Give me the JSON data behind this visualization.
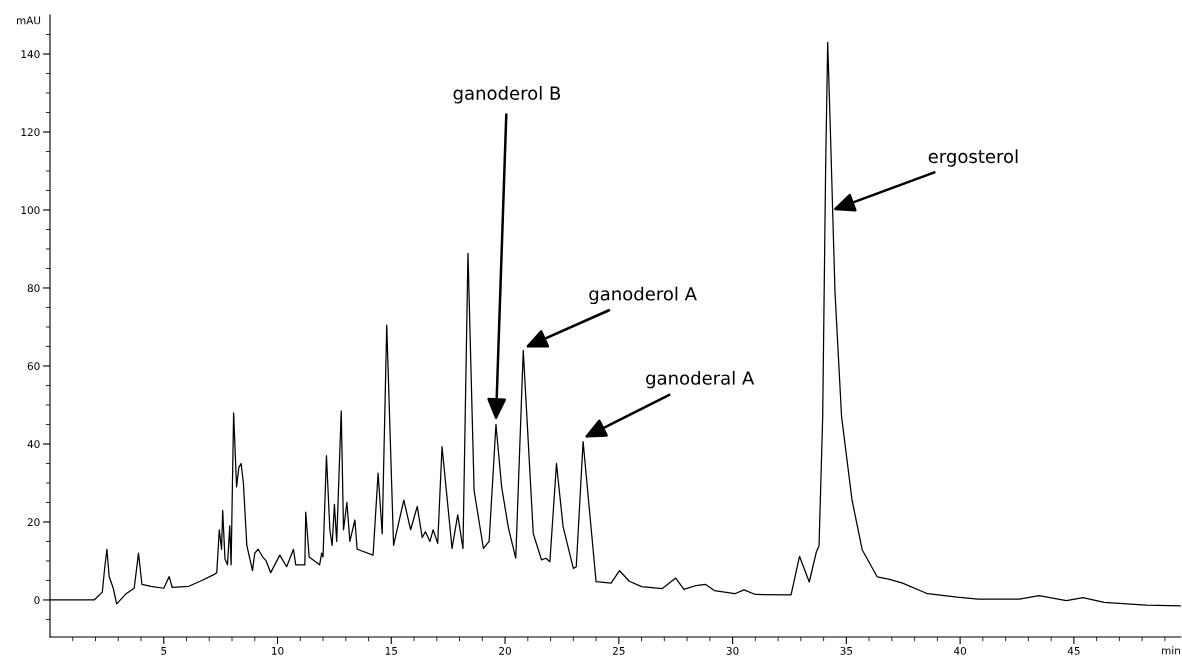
{
  "chart_data": {
    "type": "line",
    "xlabel": "min",
    "ylabel": "mAU",
    "x": [
      0,
      1.94,
      2.3,
      2.4,
      2.5,
      2.6,
      2.78,
      2.93,
      3.33,
      3.7,
      3.89,
      4.04,
      4.44,
      5.0,
      5.24,
      5.37,
      6.1,
      6.67,
      7.2,
      7.33,
      7.44,
      7.54,
      7.59,
      7.69,
      7.8,
      7.9,
      7.96,
      8.07,
      8.2,
      8.3,
      8.4,
      8.5,
      8.65,
      8.9,
      9.0,
      9.15,
      9.35,
      9.5,
      9.7,
      10.1,
      10.4,
      10.7,
      10.8,
      11.2,
      11.24,
      11.39,
      11.85,
      11.94,
      12.0,
      12.15,
      12.3,
      12.4,
      12.5,
      12.6,
      12.8,
      12.9,
      13.05,
      13.18,
      13.4,
      13.5,
      14.2,
      14.42,
      14.6,
      14.8,
      15.1,
      15.55,
      15.85,
      16.14,
      16.36,
      16.5,
      16.7,
      16.84,
      17.04,
      17.23,
      17.67,
      17.92,
      18.15,
      18.37,
      18.64,
      19.05,
      19.3,
      19.6,
      19.85,
      20.15,
      20.47,
      20.8,
      21.24,
      21.6,
      21.8,
      21.97,
      22.26,
      22.55,
      23.0,
      23.13,
      23.43,
      24.0,
      24.66,
      25.03,
      25.46,
      26.0,
      26.9,
      27.5,
      27.86,
      28.4,
      28.8,
      29.2,
      30.1,
      30.5,
      31.0,
      32.57,
      32.94,
      33.37,
      33.68,
      33.8,
      33.96,
      34.09,
      34.18,
      34.29,
      34.5,
      34.79,
      35.25,
      35.7,
      36.36,
      36.9,
      37.47,
      38.57,
      39.87,
      40.79,
      42.6,
      43.47,
      44.67,
      45.4,
      46.33,
      48.17,
      49.7
    ],
    "values": [
      0,
      0,
      2,
      8,
      13,
      6,
      3,
      -1,
      1.5,
      3,
      12,
      4,
      3.5,
      3,
      6,
      3.2,
      3.5,
      5,
      6.5,
      7,
      18,
      13,
      23,
      10.5,
      9,
      19,
      9,
      48,
      29,
      34,
      35,
      30,
      14,
      7.5,
      12,
      13,
      11,
      10,
      7,
      11.5,
      8.5,
      13,
      9,
      9,
      22.5,
      11,
      9,
      12,
      11,
      37,
      18,
      14,
      24.5,
      15,
      48.5,
      18,
      25,
      15,
      20.5,
      13,
      11.5,
      32.5,
      17,
      70.5,
      14,
      25.6,
      18,
      24,
      16,
      17.5,
      15,
      18,
      14.5,
      39.3,
      13.2,
      21.8,
      13.2,
      88.9,
      28,
      13.2,
      15,
      45,
      29,
      18.4,
      10.7,
      64,
      17,
      10.3,
      10.7,
      9.8,
      35,
      18.8,
      8.1,
      8.5,
      40.6,
      4.7,
      4.3,
      7.5,
      4.8,
      3.4,
      2.9,
      5.6,
      2.7,
      3.7,
      4,
      2.4,
      1.6,
      2.6,
      1.4,
      1.3,
      11.2,
      4.6,
      12.3,
      13.9,
      47,
      111,
      143,
      122,
      79,
      47,
      25.6,
      12.8,
      5.9,
      5.3,
      4.3,
      1.6,
      0.7,
      0.2,
      0.2,
      1.1,
      -0.2,
      0.6,
      -0.6,
      -1.3,
      -1.5
    ],
    "color": "#000000",
    "marker": "none",
    "line_style": "solid",
    "grid": false,
    "legend": false,
    "xlim": [
      0,
      49.7
    ],
    "ylim": [
      -9.5,
      150
    ],
    "xticks": [
      {
        "value": 1,
        "label": null
      },
      {
        "value": 2,
        "label": null
      },
      {
        "value": 3,
        "label": null
      },
      {
        "value": 4,
        "label": null
      },
      5,
      {
        "value": 6,
        "label": null
      },
      {
        "value": 7,
        "label": null
      },
      {
        "value": 8,
        "label": null
      },
      {
        "value": 9,
        "label": null
      },
      10,
      {
        "value": 11,
        "label": null
      },
      {
        "value": 12,
        "label": null
      },
      {
        "value": 13,
        "label": null
      },
      {
        "value": 14,
        "label": null
      },
      15,
      {
        "value": 16,
        "label": null
      },
      {
        "value": 17,
        "label": null
      },
      {
        "value": 18,
        "label": null
      },
      {
        "value": 19,
        "label": null
      },
      20,
      {
        "value": 21,
        "label": null
      },
      {
        "value": 22,
        "label": null
      },
      {
        "value": 23,
        "label": null
      },
      {
        "value": 24,
        "label": null
      },
      25,
      {
        "value": 26,
        "label": null
      },
      {
        "value": 27,
        "label": null
      },
      {
        "value": 28,
        "label": null
      },
      {
        "value": 29,
        "label": null
      },
      30,
      {
        "value": 31,
        "label": null
      },
      {
        "value": 32,
        "label": null
      },
      {
        "value": 33,
        "label": null
      },
      {
        "value": 34,
        "label": null
      },
      35,
      {
        "value": 36,
        "label": null
      },
      {
        "value": 37,
        "label": null
      },
      {
        "value": 38,
        "label": null
      },
      {
        "value": 39,
        "label": null
      },
      40,
      {
        "value": 41,
        "label": null
      },
      {
        "value": 42,
        "label": null
      },
      {
        "value": 43,
        "label": null
      },
      {
        "value": 44,
        "label": null
      },
      45,
      {
        "value": 46,
        "label": null
      },
      {
        "value": 47,
        "label": null
      },
      {
        "value": 48,
        "label": null
      },
      {
        "value": 49,
        "label": null
      }
    ],
    "yticks": [
      {
        "value": -5,
        "label": null
      },
      0,
      {
        "value": 5,
        "label": null
      },
      {
        "value": 10,
        "label": null
      },
      {
        "value": 15,
        "label": null
      },
      20,
      {
        "value": 25,
        "label": null
      },
      {
        "value": 30,
        "label": null
      },
      {
        "value": 35,
        "label": null
      },
      40,
      {
        "value": 45,
        "label": null
      },
      {
        "value": 50,
        "label": null
      },
      {
        "value": 55,
        "label": null
      },
      60,
      {
        "value": 65,
        "label": null
      },
      {
        "value": 70,
        "label": null
      },
      {
        "value": 75,
        "label": null
      },
      80,
      {
        "value": 85,
        "label": null
      },
      {
        "value": 90,
        "label": null
      },
      {
        "value": 95,
        "label": null
      },
      100,
      {
        "value": 105,
        "label": null
      },
      {
        "value": 110,
        "label": null
      },
      {
        "value": 115,
        "label": null
      },
      120,
      {
        "value": 125,
        "label": null
      },
      {
        "value": 130,
        "label": null
      },
      {
        "value": 135,
        "label": null
      },
      140,
      {
        "value": 145,
        "label": null
      }
    ],
    "annotations": [
      {
        "text": "ganoderol B",
        "x": 19.6,
        "y": 45
      },
      {
        "text": "ganoderol A",
        "x": 20.8,
        "y": 64
      },
      {
        "text": "ganoderal A",
        "x": 23.43,
        "y": 40.6
      },
      {
        "text": "ergosterol",
        "x": 34.4,
        "y": 100
      }
    ]
  }
}
